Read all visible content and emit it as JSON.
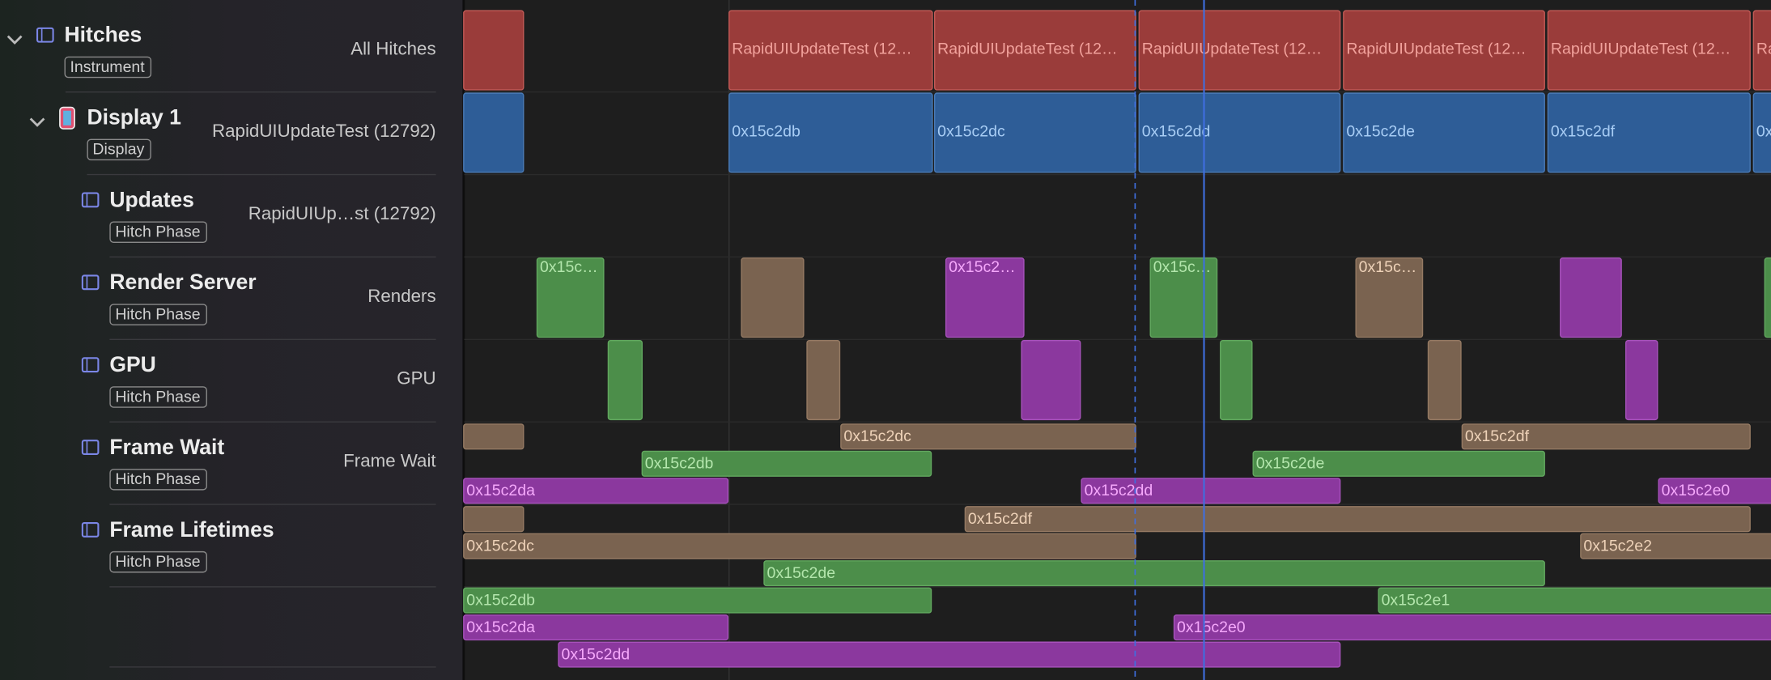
{
  "tracks": [
    {
      "title": "Hitches",
      "badge": "Instrument",
      "summary": "All Hitches",
      "labels": [
        "RapidUIUpdateTest (12…",
        "RapidUIUpdateTest (12…",
        "RapidUIUpdateTest (12…",
        "RapidUIUpdateTest (12…",
        "RapidUIUpdateTest (12…",
        "Ra"
      ]
    },
    {
      "title": "Display 1",
      "badge": "Display",
      "summary": "RapidUIUpdateTest (12792)",
      "labels": [
        "0x15c2db",
        "0x15c2dc",
        "0x15c2dd",
        "0x15c2de",
        "0x15c2df",
        "0x"
      ]
    },
    {
      "title": "Updates",
      "badge": "Hitch Phase",
      "summary": "RapidUIUp…st (12792)"
    },
    {
      "title": "Render Server",
      "badge": "Hitch Phase",
      "summary": "Renders",
      "labels": [
        "0x15c…",
        "0x15c2…",
        "0x15c…",
        "0x15c…"
      ]
    },
    {
      "title": "GPU",
      "badge": "Hitch Phase",
      "summary": "GPU"
    },
    {
      "title": "Frame Wait",
      "badge": "Hitch Phase",
      "summary": "Frame Wait",
      "labels": [
        "0x15c2dc",
        "0x15c2df",
        "0x15c2db",
        "0x15c2de",
        "0x15c2da",
        "0x15c2dd",
        "0x15c2e0"
      ]
    },
    {
      "title": "Frame Lifetimes",
      "badge": "Hitch Phase",
      "labels": [
        "0x15c2df",
        "0x15c2dc",
        "0x15c2e2",
        "0x15c2de",
        "0x15c2db",
        "0x15c2e1",
        "0x15c2da",
        "0x15c2e0",
        "0x15c2dd"
      ]
    }
  ]
}
